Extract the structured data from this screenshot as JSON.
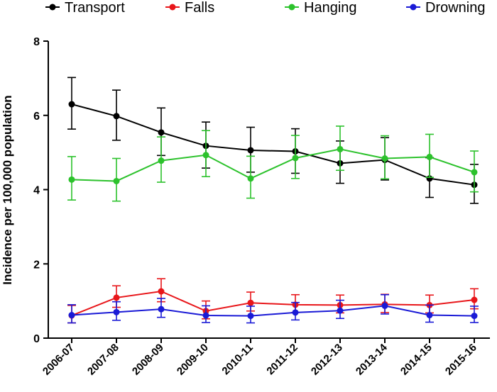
{
  "chart_data": {
    "type": "line",
    "title": "",
    "xlabel": "",
    "ylabel": "Incidence per 100,000 population",
    "ylim": [
      0,
      8
    ],
    "yticks": [
      0,
      2,
      4,
      6,
      8
    ],
    "categories": [
      "2006-07",
      "2007-08",
      "2008-09",
      "2009-10",
      "2010-11",
      "2011-12",
      "2012-13",
      "2013-14",
      "2014-15",
      "2015-16"
    ],
    "legend_position": "top",
    "series": [
      {
        "name": "Transport",
        "color": "#000000",
        "values": [
          6.3,
          5.98,
          5.54,
          5.18,
          5.06,
          5.03,
          4.71,
          4.8,
          4.3,
          4.13
        ],
        "err_low": [
          5.63,
          5.33,
          4.92,
          4.58,
          4.47,
          4.44,
          4.17,
          4.26,
          3.79,
          3.63
        ],
        "err_high": [
          7.02,
          6.68,
          6.2,
          5.82,
          5.68,
          5.64,
          5.31,
          5.4,
          4.86,
          4.68
        ]
      },
      {
        "name": "Falls",
        "color": "#e8161a",
        "values": [
          0.61,
          1.09,
          1.26,
          0.73,
          0.95,
          0.9,
          0.89,
          0.91,
          0.89,
          1.03
        ],
        "err_low": [
          0.41,
          0.83,
          0.98,
          0.52,
          0.73,
          0.69,
          0.68,
          0.69,
          0.68,
          0.79
        ],
        "err_high": [
          0.88,
          1.41,
          1.6,
          1.0,
          1.24,
          1.17,
          1.16,
          1.18,
          1.16,
          1.33
        ]
      },
      {
        "name": "Hanging",
        "color": "#2cc22c",
        "values": [
          4.27,
          4.23,
          4.78,
          4.93,
          4.3,
          4.85,
          5.09,
          4.84,
          4.88,
          4.47
        ],
        "err_low": [
          3.72,
          3.69,
          4.2,
          4.35,
          3.77,
          4.3,
          4.52,
          4.29,
          4.33,
          3.94
        ],
        "err_high": [
          4.89,
          4.84,
          5.42,
          5.59,
          4.9,
          5.46,
          5.71,
          5.45,
          5.49,
          5.04
        ]
      },
      {
        "name": "Drowning",
        "color": "#1a1ad6",
        "values": [
          0.62,
          0.7,
          0.78,
          0.61,
          0.6,
          0.69,
          0.74,
          0.87,
          0.62,
          0.6
        ],
        "err_low": [
          0.41,
          0.48,
          0.56,
          0.42,
          0.41,
          0.49,
          0.53,
          0.65,
          0.43,
          0.42
        ],
        "err_high": [
          0.9,
          0.98,
          1.07,
          0.87,
          0.86,
          0.96,
          1.02,
          1.17,
          0.89,
          0.86
        ]
      }
    ]
  }
}
